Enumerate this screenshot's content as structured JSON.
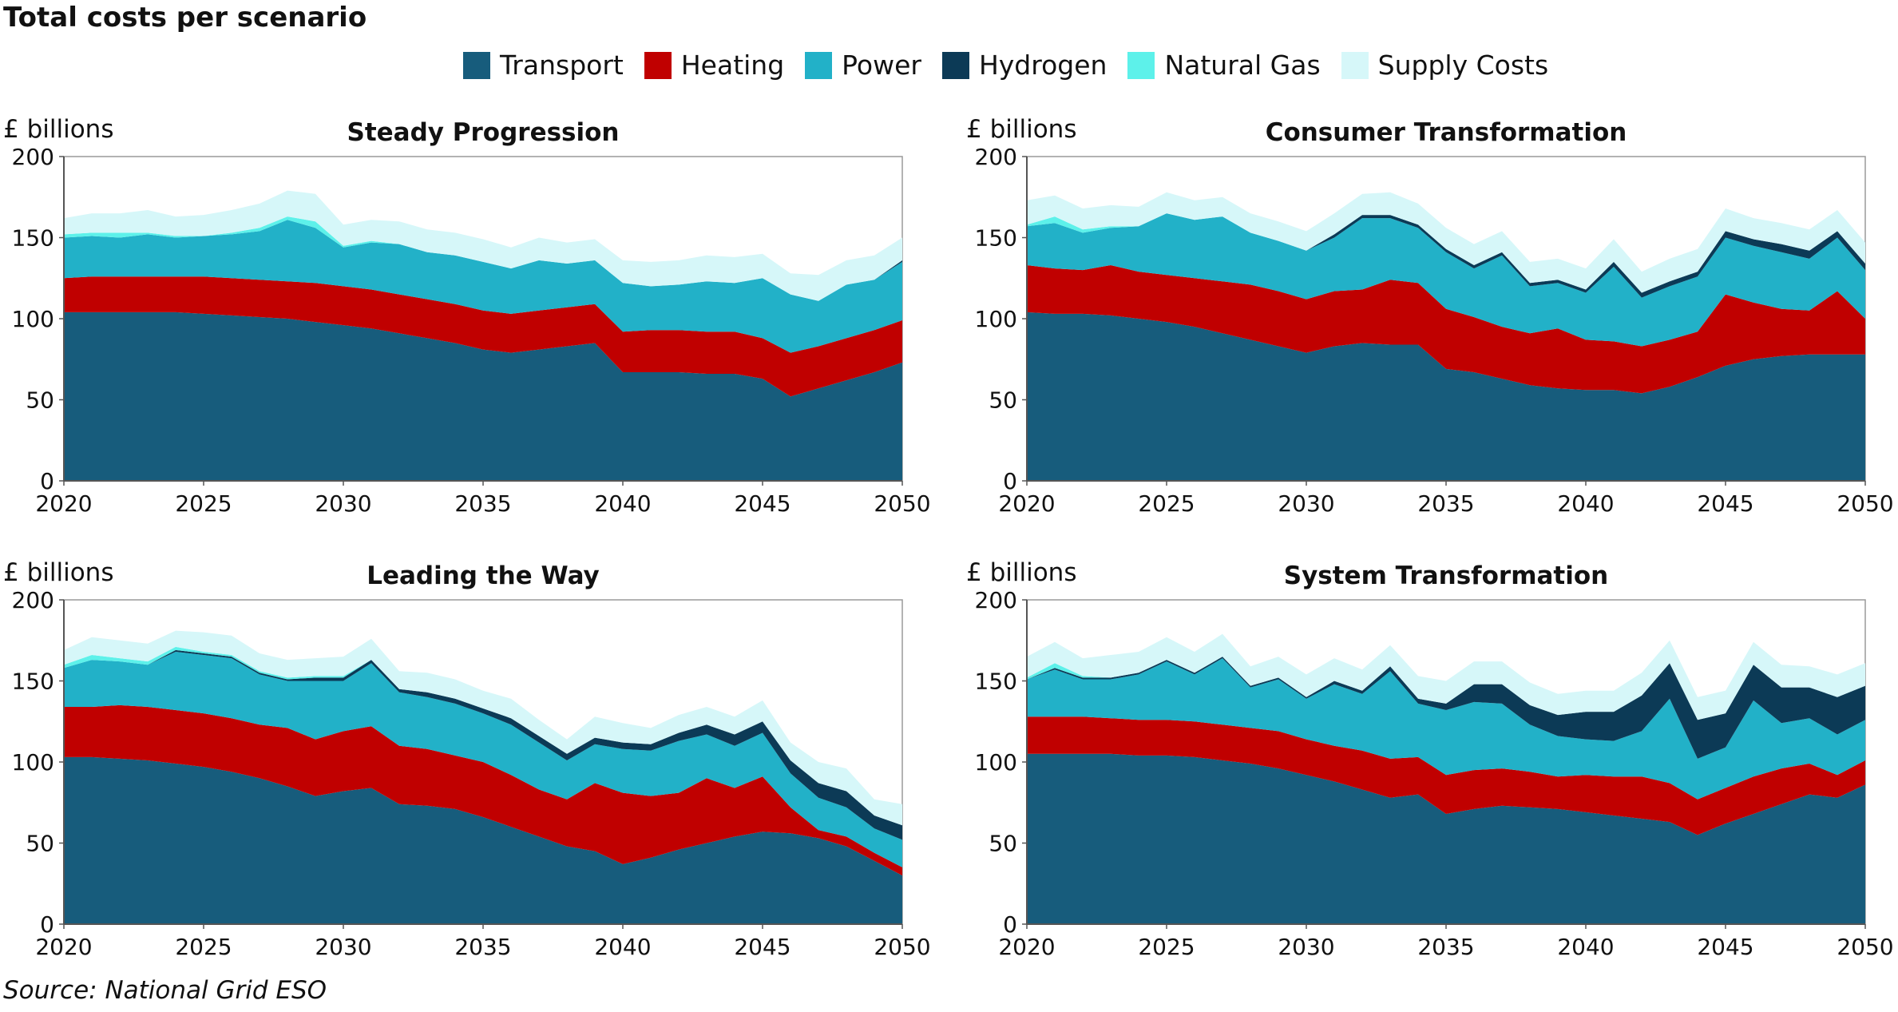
{
  "title": "Total costs per scenario",
  "source": "Source: National Grid ESO",
  "legend": [
    {
      "name": "Transport",
      "color": "#175c7c"
    },
    {
      "name": "Heating",
      "color": "#c00000"
    },
    {
      "name": "Power",
      "color": "#22b1c8"
    },
    {
      "name": "Hydrogen",
      "color": "#0c3a56"
    },
    {
      "name": "Natural Gas",
      "color": "#5df1ea"
    },
    {
      "name": "Supply Costs",
      "color": "#d6f7f9"
    }
  ],
  "chart_data": [
    {
      "type": "area",
      "stacked": true,
      "title": "Steady Progression",
      "ylabel": "£ billions",
      "ylim": [
        0,
        200
      ],
      "yticks": [
        0,
        50,
        100,
        150,
        200
      ],
      "xticks": [
        2020,
        2025,
        2030,
        2035,
        2040,
        2045,
        2050
      ],
      "x": [
        2020,
        2021,
        2022,
        2023,
        2024,
        2025,
        2026,
        2027,
        2028,
        2029,
        2030,
        2031,
        2032,
        2033,
        2034,
        2035,
        2036,
        2037,
        2038,
        2039,
        2040,
        2041,
        2042,
        2043,
        2044,
        2045,
        2046,
        2047,
        2048,
        2049,
        2050
      ],
      "series": [
        {
          "name": "Transport",
          "values": [
            104,
            104,
            104,
            104,
            104,
            103,
            102,
            101,
            100,
            98,
            96,
            94,
            91,
            88,
            85,
            81,
            79,
            81,
            83,
            85,
            67,
            67,
            67,
            66,
            66,
            63,
            52,
            57,
            62,
            67,
            73
          ]
        },
        {
          "name": "Heating",
          "values": [
            21,
            22,
            22,
            22,
            22,
            23,
            23,
            23,
            23,
            24,
            24,
            24,
            24,
            24,
            24,
            24,
            24,
            24,
            24,
            24,
            25,
            26,
            26,
            26,
            26,
            25,
            27,
            26,
            26,
            26,
            26
          ]
        },
        {
          "name": "Power",
          "values": [
            25,
            25,
            24,
            26,
            24,
            25,
            27,
            30,
            38,
            34,
            24,
            29,
            31,
            29,
            30,
            30,
            28,
            31,
            27,
            27,
            30,
            27,
            28,
            31,
            30,
            37,
            36,
            28,
            33,
            31,
            36
          ]
        },
        {
          "name": "Hydrogen",
          "values": [
            0,
            0,
            0,
            0,
            0,
            0,
            0,
            0,
            0,
            0,
            0,
            0,
            0,
            0,
            0,
            0,
            0,
            0,
            0,
            0,
            0,
            0,
            0,
            0,
            0,
            0,
            0,
            0,
            0,
            0,
            1
          ]
        },
        {
          "name": "Natural Gas",
          "values": [
            2,
            2,
            3,
            1,
            1,
            0,
            1,
            2,
            2,
            4,
            1,
            1,
            0,
            0,
            0,
            0,
            0,
            0,
            0,
            0,
            0,
            0,
            0,
            0,
            0,
            0,
            0,
            0,
            0,
            0,
            0
          ]
        },
        {
          "name": "Supply Costs",
          "values": [
            10,
            12,
            12,
            14,
            12,
            13,
            14,
            15,
            16,
            17,
            13,
            13,
            14,
            14,
            14,
            14,
            13,
            14,
            13,
            13,
            14,
            15,
            15,
            16,
            16,
            15,
            13,
            16,
            15,
            15,
            14
          ]
        }
      ]
    },
    {
      "type": "area",
      "stacked": true,
      "title": "Consumer Transformation",
      "ylabel": "£ billions",
      "ylim": [
        0,
        200
      ],
      "yticks": [
        0,
        50,
        100,
        150,
        200
      ],
      "xticks": [
        2020,
        2025,
        2030,
        2035,
        2040,
        2045,
        2050
      ],
      "x": [
        2020,
        2021,
        2022,
        2023,
        2024,
        2025,
        2026,
        2027,
        2028,
        2029,
        2030,
        2031,
        2032,
        2033,
        2034,
        2035,
        2036,
        2037,
        2038,
        2039,
        2040,
        2041,
        2042,
        2043,
        2044,
        2045,
        2046,
        2047,
        2048,
        2049,
        2050
      ],
      "series": [
        {
          "name": "Transport",
          "values": [
            104,
            103,
            103,
            102,
            100,
            98,
            95,
            91,
            87,
            83,
            79,
            83,
            85,
            84,
            84,
            69,
            67,
            63,
            59,
            57,
            56,
            56,
            54,
            58,
            64,
            71,
            75,
            77,
            78,
            78,
            78
          ]
        },
        {
          "name": "Heating",
          "values": [
            29,
            28,
            27,
            31,
            29,
            29,
            30,
            32,
            34,
            34,
            33,
            34,
            33,
            40,
            38,
            37,
            34,
            32,
            32,
            37,
            31,
            30,
            29,
            29,
            28,
            44,
            35,
            29,
            27,
            39,
            22
          ]
        },
        {
          "name": "Power",
          "values": [
            24,
            28,
            23,
            23,
            28,
            38,
            36,
            40,
            32,
            31,
            30,
            33,
            44,
            38,
            34,
            35,
            30,
            44,
            29,
            28,
            29,
            46,
            30,
            33,
            34,
            35,
            35,
            35,
            32,
            33,
            30
          ]
        },
        {
          "name": "Hydrogen",
          "values": [
            0,
            0,
            0,
            0,
            0,
            0,
            0,
            0,
            0,
            0,
            0,
            2,
            2,
            2,
            2,
            2,
            2,
            2,
            2,
            2,
            2,
            3,
            3,
            3,
            3,
            4,
            4,
            5,
            5,
            4,
            4
          ]
        },
        {
          "name": "Natural Gas",
          "values": [
            1,
            4,
            2,
            1,
            0,
            0,
            0,
            0,
            0,
            0,
            0,
            0,
            0,
            0,
            0,
            0,
            0,
            0,
            0,
            0,
            0,
            0,
            0,
            0,
            0,
            0,
            0,
            0,
            0,
            0,
            0
          ]
        },
        {
          "name": "Supply Costs",
          "values": [
            15,
            13,
            13,
            13,
            12,
            13,
            12,
            12,
            12,
            12,
            12,
            13,
            13,
            14,
            13,
            13,
            13,
            13,
            13,
            13,
            13,
            14,
            13,
            14,
            14,
            14,
            13,
            13,
            13,
            13,
            13
          ]
        }
      ]
    },
    {
      "type": "area",
      "stacked": true,
      "title": "Leading the Way",
      "ylabel": "£ billions",
      "ylim": [
        0,
        200
      ],
      "yticks": [
        0,
        50,
        100,
        150,
        200
      ],
      "xticks": [
        2020,
        2025,
        2030,
        2035,
        2040,
        2045,
        2050
      ],
      "x": [
        2020,
        2021,
        2022,
        2023,
        2024,
        2025,
        2026,
        2027,
        2028,
        2029,
        2030,
        2031,
        2032,
        2033,
        2034,
        2035,
        2036,
        2037,
        2038,
        2039,
        2040,
        2041,
        2042,
        2043,
        2044,
        2045,
        2046,
        2047,
        2048,
        2049,
        2050
      ],
      "series": [
        {
          "name": "Transport",
          "values": [
            103,
            103,
            102,
            101,
            99,
            97,
            94,
            90,
            85,
            79,
            82,
            84,
            74,
            73,
            71,
            66,
            60,
            54,
            48,
            45,
            37,
            41,
            46,
            50,
            54,
            57,
            56,
            53,
            48,
            39,
            30
          ]
        },
        {
          "name": "Heating",
          "values": [
            31,
            31,
            33,
            33,
            33,
            33,
            33,
            33,
            36,
            35,
            37,
            38,
            36,
            35,
            33,
            34,
            32,
            29,
            29,
            42,
            44,
            38,
            35,
            40,
            30,
            34,
            16,
            5,
            6,
            5,
            5
          ]
        },
        {
          "name": "Power",
          "values": [
            24,
            29,
            27,
            26,
            36,
            36,
            37,
            31,
            29,
            36,
            31,
            39,
            33,
            32,
            32,
            30,
            31,
            29,
            24,
            24,
            27,
            28,
            32,
            27,
            26,
            27,
            21,
            20,
            18,
            15,
            17
          ]
        },
        {
          "name": "Hydrogen",
          "values": [
            0,
            0,
            0,
            0,
            1,
            1,
            1,
            1,
            1,
            2,
            2,
            2,
            2,
            3,
            3,
            3,
            4,
            4,
            4,
            4,
            4,
            4,
            5,
            6,
            7,
            7,
            8,
            9,
            10,
            8,
            9
          ]
        },
        {
          "name": "Natural Gas",
          "values": [
            2,
            3,
            2,
            2,
            2,
            1,
            1,
            1,
            1,
            1,
            1,
            0,
            0,
            0,
            0,
            0,
            0,
            0,
            0,
            0,
            0,
            0,
            0,
            0,
            0,
            0,
            0,
            0,
            0,
            0,
            0
          ]
        },
        {
          "name": "Supply Costs",
          "values": [
            9,
            11,
            11,
            11,
            10,
            12,
            12,
            11,
            11,
            11,
            12,
            13,
            11,
            12,
            12,
            11,
            12,
            10,
            9,
            13,
            12,
            10,
            11,
            11,
            11,
            13,
            11,
            13,
            14,
            10,
            13
          ]
        }
      ]
    },
    {
      "type": "area",
      "stacked": true,
      "title": "System Transformation",
      "ylabel": "£ billions",
      "ylim": [
        0,
        200
      ],
      "yticks": [
        0,
        50,
        100,
        150,
        200
      ],
      "xticks": [
        2020,
        2025,
        2030,
        2035,
        2040,
        2045,
        2050
      ],
      "x": [
        2020,
        2021,
        2022,
        2023,
        2024,
        2025,
        2026,
        2027,
        2028,
        2029,
        2030,
        2031,
        2032,
        2033,
        2034,
        2035,
        2036,
        2037,
        2038,
        2039,
        2040,
        2041,
        2042,
        2043,
        2044,
        2045,
        2046,
        2047,
        2048,
        2049,
        2050
      ],
      "series": [
        {
          "name": "Transport",
          "values": [
            105,
            105,
            105,
            105,
            104,
            104,
            103,
            101,
            99,
            96,
            92,
            88,
            83,
            78,
            80,
            68,
            71,
            73,
            72,
            71,
            69,
            67,
            65,
            63,
            55,
            62,
            68,
            74,
            80,
            78,
            86
          ]
        },
        {
          "name": "Heating",
          "values": [
            23,
            23,
            23,
            22,
            22,
            22,
            22,
            22,
            22,
            23,
            22,
            22,
            24,
            24,
            23,
            24,
            24,
            23,
            22,
            20,
            23,
            24,
            26,
            24,
            22,
            22,
            23,
            22,
            19,
            14,
            15
          ]
        },
        {
          "name": "Power",
          "values": [
            23,
            29,
            23,
            24,
            28,
            36,
            29,
            41,
            25,
            32,
            25,
            38,
            35,
            54,
            33,
            40,
            42,
            40,
            29,
            25,
            22,
            22,
            28,
            52,
            25,
            25,
            47,
            28,
            28,
            25,
            25
          ]
        },
        {
          "name": "Hydrogen",
          "values": [
            0,
            1,
            1,
            1,
            1,
            1,
            1,
            1,
            1,
            1,
            1,
            2,
            2,
            3,
            3,
            4,
            11,
            12,
            12,
            13,
            17,
            18,
            22,
            22,
            24,
            21,
            22,
            22,
            19,
            23,
            21
          ]
        },
        {
          "name": "Natural Gas",
          "values": [
            1,
            3,
            1,
            0,
            0,
            0,
            0,
            0,
            0,
            0,
            0,
            0,
            0,
            0,
            0,
            0,
            0,
            0,
            0,
            0,
            0,
            0,
            0,
            0,
            0,
            0,
            0,
            0,
            0,
            0,
            0
          ]
        },
        {
          "name": "Supply Costs",
          "values": [
            13,
            13,
            11,
            14,
            13,
            14,
            13,
            14,
            12,
            13,
            14,
            14,
            13,
            13,
            14,
            14,
            14,
            14,
            14,
            13,
            13,
            13,
            14,
            14,
            14,
            14,
            14,
            14,
            13,
            14,
            14
          ]
        }
      ]
    }
  ]
}
